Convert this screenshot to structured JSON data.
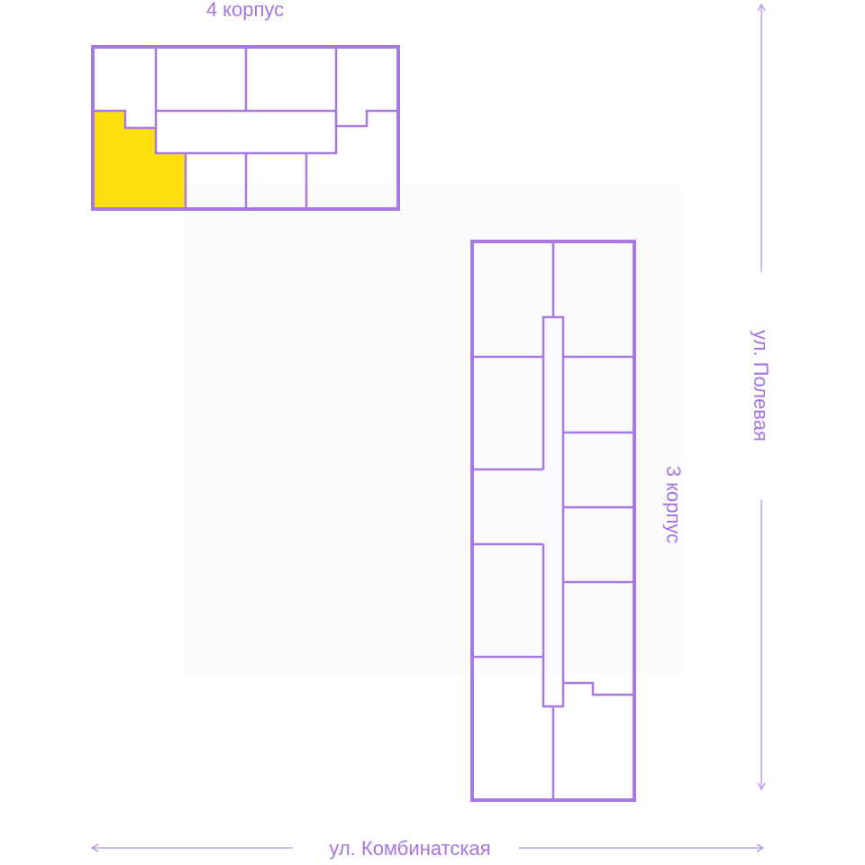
{
  "buildings": [
    {
      "label": "4 корпус",
      "highlighted_unit_color": "#ffe00f"
    },
    {
      "label": "3 корпус"
    }
  ],
  "streets": {
    "right": "ул. Полевая",
    "bottom": "ул. Комбинатская"
  },
  "colors": {
    "walls": "#a87be2",
    "labels": "#a676e0",
    "highlight": "#ffe00f"
  }
}
